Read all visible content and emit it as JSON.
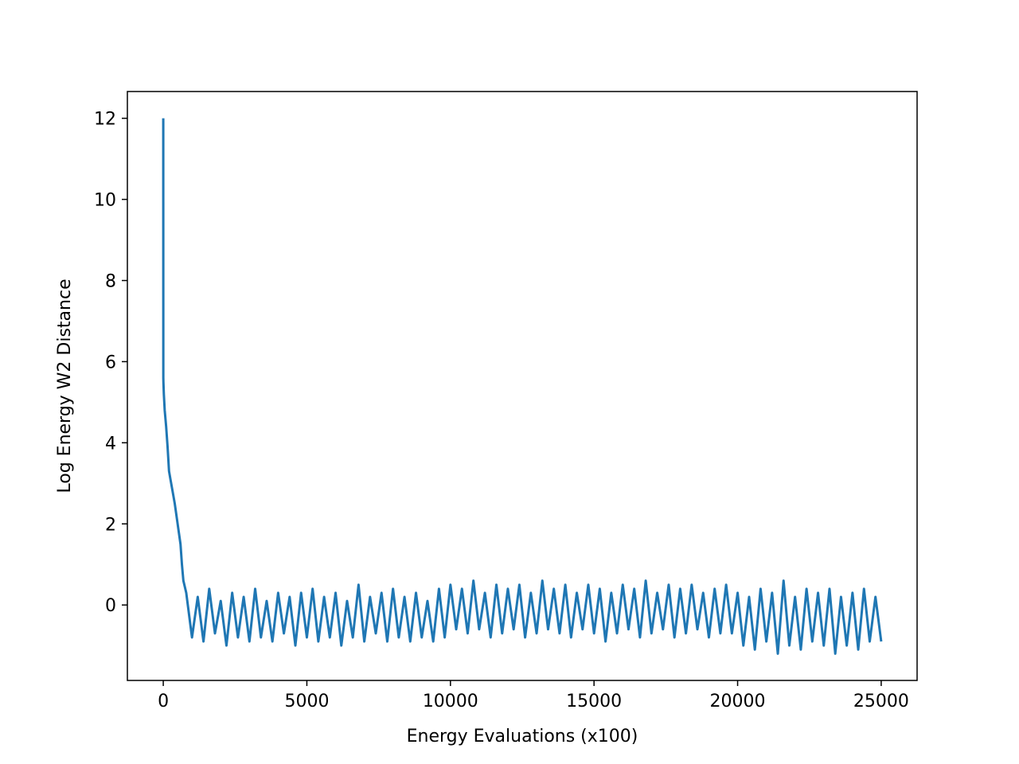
{
  "chart_data": {
    "type": "line",
    "xlabel": "Energy Evaluations (x100)",
    "ylabel": "Log Energy W2 Distance",
    "color": "#1f77b4",
    "xlim": [
      -1250,
      26250
    ],
    "xticks": [
      0,
      5000,
      10000,
      15000,
      20000,
      25000
    ],
    "ylim": [
      -1.86,
      12.66
    ],
    "yticks": [
      0,
      2,
      4,
      6,
      8,
      10,
      12
    ],
    "x": [
      0,
      2,
      5,
      20,
      50,
      100,
      150,
      200,
      250,
      300,
      400,
      500,
      600,
      650,
      700,
      800,
      1000,
      1200,
      1400,
      1600,
      1800,
      2000,
      2200,
      2400,
      2600,
      2800,
      3000,
      3200,
      3400,
      3600,
      3800,
      4000,
      4200,
      4400,
      4600,
      4800,
      5000,
      5200,
      5400,
      5600,
      5800,
      6000,
      6200,
      6400,
      6600,
      6800,
      7000,
      7200,
      7400,
      7600,
      7800,
      8000,
      8200,
      8400,
      8600,
      8800,
      9000,
      9200,
      9400,
      9600,
      9800,
      10000,
      10200,
      10400,
      10600,
      10800,
      11000,
      11200,
      11400,
      11600,
      11800,
      12000,
      12200,
      12400,
      12600,
      12800,
      13000,
      13200,
      13400,
      13600,
      13800,
      14000,
      14200,
      14400,
      14600,
      14800,
      15000,
      15200,
      15400,
      15600,
      15800,
      16000,
      16200,
      16400,
      16600,
      16800,
      17000,
      17200,
      17400,
      17600,
      17800,
      18000,
      18200,
      18400,
      18600,
      18800,
      19000,
      19200,
      19400,
      19600,
      19800,
      20000,
      20200,
      20400,
      20600,
      20800,
      21000,
      21200,
      21400,
      21600,
      21800,
      22000,
      22200,
      22400,
      22600,
      22800,
      23000,
      23200,
      23400,
      23600,
      23800,
      24000,
      24200,
      24400,
      24600,
      24800,
      25000
    ],
    "values": [
      12,
      5.6,
      5.5,
      5.2,
      4.8,
      4.4,
      3.9,
      3.3,
      3.1,
      2.9,
      2.5,
      2.0,
      1.5,
      1.0,
      0.6,
      0.3,
      -0.8,
      0.2,
      -0.9,
      0.4,
      -0.7,
      0.1,
      -1.0,
      0.3,
      -0.8,
      0.2,
      -0.9,
      0.4,
      -0.8,
      0.1,
      -0.9,
      0.3,
      -0.7,
      0.2,
      -1.0,
      0.3,
      -0.8,
      0.4,
      -0.9,
      0.2,
      -0.8,
      0.3,
      -1.0,
      0.1,
      -0.8,
      0.5,
      -0.9,
      0.2,
      -0.7,
      0.3,
      -0.9,
      0.4,
      -0.8,
      0.2,
      -0.9,
      0.3,
      -0.8,
      0.1,
      -0.9,
      0.4,
      -0.8,
      0.5,
      -0.6,
      0.4,
      -0.7,
      0.6,
      -0.6,
      0.3,
      -0.8,
      0.5,
      -0.7,
      0.4,
      -0.6,
      0.5,
      -0.8,
      0.3,
      -0.7,
      0.6,
      -0.6,
      0.4,
      -0.7,
      0.5,
      -0.8,
      0.3,
      -0.6,
      0.5,
      -0.7,
      0.4,
      -0.9,
      0.3,
      -0.7,
      0.5,
      -0.6,
      0.4,
      -0.8,
      0.6,
      -0.7,
      0.3,
      -0.6,
      0.5,
      -0.8,
      0.4,
      -0.7,
      0.5,
      -0.6,
      0.3,
      -0.8,
      0.4,
      -0.7,
      0.5,
      -0.7,
      0.3,
      -1.0,
      0.2,
      -1.1,
      0.4,
      -0.9,
      0.3,
      -1.2,
      0.6,
      -1.0,
      0.2,
      -1.1,
      0.4,
      -0.9,
      0.3,
      -1.0,
      0.4,
      -1.2,
      0.2,
      -1.0,
      0.3,
      -1.1,
      0.4,
      -0.9,
      0.2,
      -0.9
    ]
  }
}
